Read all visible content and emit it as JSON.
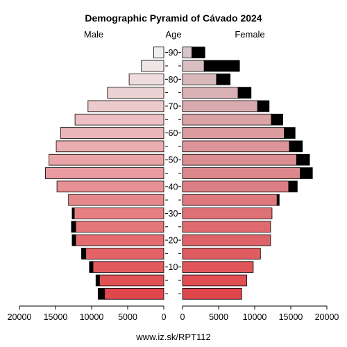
{
  "chart_data": {
    "type": "bar",
    "title": "Demographic Pyramid of Cávado 2024",
    "left_label": "Male",
    "center_label": "Age",
    "right_label": "Female",
    "age_ticks": [
      "10",
      "20",
      "30",
      "40",
      "50",
      "60",
      "70",
      "80",
      "90"
    ],
    "x_ticks": [
      "20000",
      "15000",
      "10000",
      "5000",
      "0",
      "0",
      "5000",
      "10000",
      "15000",
      "20000"
    ],
    "xlim": [
      0,
      20000
    ],
    "age_groups": [
      "0-4",
      "5-9",
      "10-14",
      "15-19",
      "20-24",
      "25-29",
      "30-34",
      "35-39",
      "40-44",
      "45-49",
      "50-54",
      "55-59",
      "60-64",
      "65-69",
      "70-74",
      "75-79",
      "80-84",
      "85-89",
      "90+"
    ],
    "male_base": [
      8200,
      8900,
      9800,
      10800,
      12200,
      12200,
      12400,
      13200,
      14800,
      16400,
      15900,
      14900,
      14300,
      12300,
      10500,
      7800,
      4800,
      3100,
      1400
    ],
    "male_extra": [
      900,
      500,
      500,
      600,
      500,
      600,
      300,
      0,
      0,
      0,
      0,
      0,
      0,
      0,
      0,
      0,
      0,
      0,
      0
    ],
    "female_base": [
      8200,
      8900,
      9800,
      10800,
      12200,
      12200,
      12400,
      13100,
      14700,
      16300,
      15800,
      14800,
      14100,
      12300,
      10400,
      7700,
      4700,
      3000,
      1300
    ],
    "female_extra": [
      0,
      0,
      0,
      0,
      0,
      0,
      0,
      300,
      1200,
      1700,
      1800,
      1800,
      1500,
      1600,
      1600,
      1800,
      1900,
      4900,
      1800
    ],
    "colors": {
      "male_young": "#e0474c",
      "male_old": "#f0eeef",
      "female_young": "#e0474c",
      "female_old": "#d7c6c9",
      "extra": "#000000",
      "stroke": "#000000"
    }
  },
  "footer": "www.iz.sk/RPT112"
}
